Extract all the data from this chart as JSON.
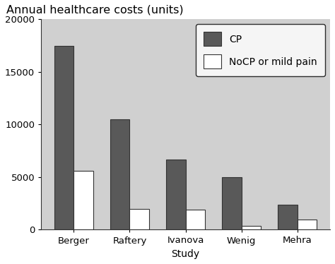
{
  "title": "Annual healthcare costs (units)",
  "xlabel": "Study",
  "categories": [
    "Berger",
    "Raftery",
    "Ivanova",
    "Wenig",
    "Mehra"
  ],
  "cp_values": [
    17500,
    10500,
    6700,
    5000,
    2400
  ],
  "nocp_values": [
    5600,
    2000,
    1900,
    400,
    1000
  ],
  "cp_color": "#595959",
  "nocp_color": "#ffffff",
  "bar_edgecolor": "#333333",
  "ylim": [
    0,
    20000
  ],
  "yticks": [
    0,
    5000,
    10000,
    15000,
    20000
  ],
  "plot_bg_color": "#d0d0d0",
  "fig_bg_color": "#ffffff",
  "legend_labels": [
    "CP",
    "NoCP or mild pain"
  ],
  "bar_width": 0.35,
  "title_fontsize": 11.5,
  "axis_fontsize": 10,
  "tick_fontsize": 9.5,
  "legend_fontsize": 10
}
